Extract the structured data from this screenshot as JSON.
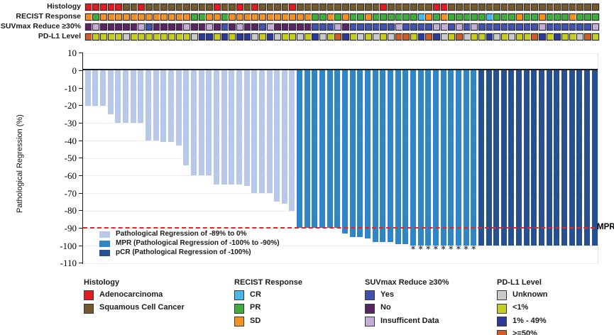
{
  "colors": {
    "adeno": "#e01b22",
    "squamous": "#76592a",
    "cr": "#45b8e8",
    "pr": "#3ead3a",
    "sd": "#f49120",
    "suv_yes": "#4152ae",
    "suv_no": "#5b2565",
    "suv_ins": "#c4add6",
    "pdl1_unknown": "#c9c9c9",
    "pdl1_lt1": "#c5cd21",
    "pdl1_1_49": "#2b3a97",
    "pdl1_ge50": "#cd5e27",
    "bar_light": "#b7c8e8",
    "bar_mpr": "#2e86c7",
    "bar_pcr": "#27518e",
    "mpr_line": "#e32626"
  },
  "annotation_tracks": [
    {
      "label": "Histology",
      "values": [
        "adeno",
        "adeno",
        "adeno",
        "adeno",
        "adeno",
        "squamous",
        "squamous",
        "adeno",
        "squamous",
        "squamous",
        "squamous",
        "squamous",
        "squamous",
        "squamous",
        "squamous",
        "squamous",
        "squamous",
        "adeno",
        "squamous",
        "squamous",
        "adeno",
        "squamous",
        "adeno",
        "squamous",
        "squamous",
        "squamous",
        "squamous",
        "adeno",
        "squamous",
        "squamous",
        "squamous",
        "squamous",
        "squamous",
        "squamous",
        "squamous",
        "squamous",
        "squamous",
        "squamous",
        "squamous",
        "adeno",
        "squamous",
        "squamous",
        "squamous",
        "squamous",
        "squamous",
        "squamous",
        "adeno",
        "adeno",
        "squamous",
        "squamous",
        "squamous",
        "squamous",
        "squamous",
        "squamous",
        "squamous",
        "squamous",
        "squamous",
        "squamous",
        "squamous",
        "squamous",
        "squamous",
        "squamous",
        "squamous",
        "squamous",
        "squamous",
        "squamous",
        "squamous",
        "squamous"
      ]
    },
    {
      "label": "RECIST Response",
      "values": [
        "sd",
        "pr",
        "sd",
        "sd",
        "sd",
        "sd",
        "sd",
        "sd",
        "sd",
        "sd",
        "sd",
        "sd",
        "sd",
        "sd",
        "pr",
        "pr",
        "sd",
        "sd",
        "pr",
        "sd",
        "sd",
        "sd",
        "sd",
        "sd",
        "sd",
        "sd",
        "sd",
        "sd",
        "sd",
        "sd",
        "pr",
        "pr",
        "sd",
        "pr",
        "sd",
        "pr",
        "pr",
        "sd",
        "pr",
        "pr",
        "pr",
        "pr",
        "pr",
        "pr",
        "cr",
        "sd",
        "pr",
        "sd",
        "pr",
        "pr",
        "pr",
        "pr",
        "pr",
        "cr",
        "pr",
        "pr",
        "pr",
        "sd",
        "pr",
        "pr",
        "sd",
        "pr",
        "pr",
        "pr",
        "sd",
        "pr",
        "pr",
        "pr"
      ]
    },
    {
      "label": "SUVmax Reduce ≥30%",
      "values": [
        "suv_no",
        "suv_ins",
        "suv_no",
        "suv_no",
        "suv_no",
        "suv_no",
        "suv_no",
        "suv_ins",
        "suv_yes",
        "suv_no",
        "suv_no",
        "suv_no",
        "suv_no",
        "suv_ins",
        "suv_no",
        "suv_no",
        "suv_ins",
        "suv_no",
        "suv_yes",
        "suv_no",
        "suv_ins",
        "suv_no",
        "suv_no",
        "suv_yes",
        "suv_ins",
        "suv_no",
        "suv_no",
        "suv_no",
        "suv_no",
        "suv_no",
        "suv_yes",
        "suv_yes",
        "suv_yes",
        "suv_ins",
        "suv_no",
        "suv_yes",
        "suv_yes",
        "suv_yes",
        "suv_yes",
        "suv_yes",
        "suv_yes",
        "suv_ins",
        "suv_yes",
        "suv_yes",
        "suv_yes",
        "suv_yes",
        "suv_ins",
        "suv_ins",
        "suv_yes",
        "suv_ins",
        "suv_yes",
        "suv_ins",
        "suv_yes",
        "suv_yes",
        "suv_yes",
        "suv_yes",
        "suv_yes",
        "suv_yes",
        "suv_yes",
        "suv_yes",
        "suv_ins",
        "suv_yes",
        "suv_yes",
        "suv_yes",
        "suv_yes",
        "suv_yes",
        "suv_yes",
        "suv_ins"
      ]
    },
    {
      "label": "PD-L1 Level",
      "values": [
        "pdl1_ge50",
        "pdl1_lt1",
        "pdl1_lt1",
        "pdl1_lt1",
        "pdl1_lt1",
        "pdl1_unknown",
        "pdl1_lt1",
        "pdl1_lt1",
        "pdl1_lt1",
        "pdl1_lt1",
        "pdl1_lt1",
        "pdl1_lt1",
        "pdl1_lt1",
        "pdl1_lt1",
        "pdl1_unknown",
        "pdl1_1_49",
        "pdl1_1_49",
        "pdl1_lt1",
        "pdl1_1_49",
        "pdl1_lt1",
        "pdl1_1_49",
        "pdl1_1_49",
        "pdl1_unknown",
        "pdl1_lt1",
        "pdl1_1_49",
        "pdl1_unknown",
        "pdl1_lt1",
        "pdl1_lt1",
        "pdl1_unknown",
        "pdl1_lt1",
        "pdl1_1_49",
        "pdl1_unknown",
        "pdl1_lt1",
        "pdl1_ge50",
        "pdl1_1_49",
        "pdl1_lt1",
        "pdl1_unknown",
        "pdl1_lt1",
        "pdl1_unknown",
        "pdl1_lt1",
        "pdl1_unknown",
        "pdl1_ge50",
        "pdl1_ge50",
        "pdl1_lt1",
        "pdl1_1_49",
        "pdl1_ge50",
        "pdl1_1_49",
        "pdl1_unknown",
        "pdl1_lt1",
        "pdl1_ge50",
        "pdl1_unknown",
        "pdl1_lt1",
        "pdl1_lt1",
        "pdl1_1_49",
        "pdl1_unknown",
        "pdl1_lt1",
        "pdl1_unknown",
        "pdl1_lt1",
        "pdl1_lt1",
        "pdl1_ge50",
        "pdl1_1_49",
        "pdl1_lt1",
        "pdl1_1_49",
        "pdl1_lt1",
        "pdl1_lt1",
        "pdl1_unknown",
        "pdl1_ge50",
        "pdl1_lt1"
      ]
    }
  ],
  "chart_data": {
    "type": "bar",
    "title": "",
    "ylabel": "Pathological Regression (%)",
    "ylim": [
      -110,
      10
    ],
    "yticks": [
      10,
      0,
      -10,
      -20,
      -30,
      -40,
      -50,
      -60,
      -70,
      -80,
      -90,
      -100,
      -110
    ],
    "grid": true,
    "mpr_threshold": -90,
    "mpr_label": "MPR",
    "values": [
      -20,
      -20,
      -20,
      -25,
      -30,
      -30,
      -30,
      -30,
      -40,
      -40,
      -41,
      -41,
      -43,
      -54,
      -60,
      -60,
      -60,
      -65,
      -65,
      -65,
      -65,
      -66,
      -70,
      -70,
      -70,
      -75,
      -76,
      -80,
      -90,
      -90,
      -90,
      -90,
      -90,
      -90,
      -93,
      -95,
      -95,
      -96,
      -98,
      -98,
      -98,
      -99,
      -99,
      -100,
      -100,
      -100,
      -100,
      -100,
      -100,
      -100,
      -100,
      -100,
      -100,
      -100,
      -100,
      -100,
      -100,
      -100,
      -100,
      -100,
      -100,
      -100,
      -100,
      -100,
      -100,
      -100,
      -100,
      -100
    ],
    "classes": [
      "light",
      "light",
      "light",
      "light",
      "light",
      "light",
      "light",
      "light",
      "light",
      "light",
      "light",
      "light",
      "light",
      "light",
      "light",
      "light",
      "light",
      "light",
      "light",
      "light",
      "light",
      "light",
      "light",
      "light",
      "light",
      "light",
      "light",
      "light",
      "mpr",
      "mpr",
      "mpr",
      "mpr",
      "mpr",
      "mpr",
      "mpr",
      "mpr",
      "mpr",
      "mpr",
      "mpr",
      "mpr",
      "mpr",
      "mpr",
      "mpr",
      "mpr",
      "mpr",
      "mpr",
      "mpr",
      "mpr",
      "mpr",
      "mpr",
      "mpr",
      "mpr",
      "pcr",
      "pcr",
      "pcr",
      "pcr",
      "pcr",
      "pcr",
      "pcr",
      "pcr",
      "pcr",
      "pcr",
      "pcr",
      "pcr",
      "pcr",
      "pcr",
      "pcr",
      "pcr"
    ],
    "starred_bars": [
      44,
      45,
      46,
      47,
      48,
      49,
      50,
      51,
      52
    ],
    "star_glyph": "*",
    "legend": [
      {
        "class": "light",
        "label": "Pathological Regression of -89% to 0%"
      },
      {
        "class": "mpr",
        "label": "MPR (Pathological Regression of -100% to -90%)"
      },
      {
        "class": "pcr",
        "label": "pCR (Pathological Regression of -100%)"
      }
    ]
  },
  "bottom_legends": [
    {
      "title": "Histology",
      "items": [
        {
          "key": "adeno",
          "label": "Adenocarcinoma"
        },
        {
          "key": "squamous",
          "label": "Squamous Cell Cancer"
        }
      ]
    },
    {
      "title": "RECIST Response",
      "items": [
        {
          "key": "cr",
          "label": "CR"
        },
        {
          "key": "pr",
          "label": "PR"
        },
        {
          "key": "sd",
          "label": "SD"
        }
      ]
    },
    {
      "title": "SUVmax Reduce ≥30%",
      "items": [
        {
          "key": "suv_yes",
          "label": "Yes"
        },
        {
          "key": "suv_no",
          "label": "No"
        },
        {
          "key": "suv_ins",
          "label": "Insufficent Data"
        }
      ]
    },
    {
      "title": "PD-L1 Level",
      "items": [
        {
          "key": "pdl1_unknown",
          "label": "Unknown"
        },
        {
          "key": "pdl1_lt1",
          "label": "<1%"
        },
        {
          "key": "pdl1_1_49",
          "label": "1% - 49%"
        },
        {
          "key": "pdl1_ge50",
          "label": ">=50%"
        }
      ]
    }
  ]
}
